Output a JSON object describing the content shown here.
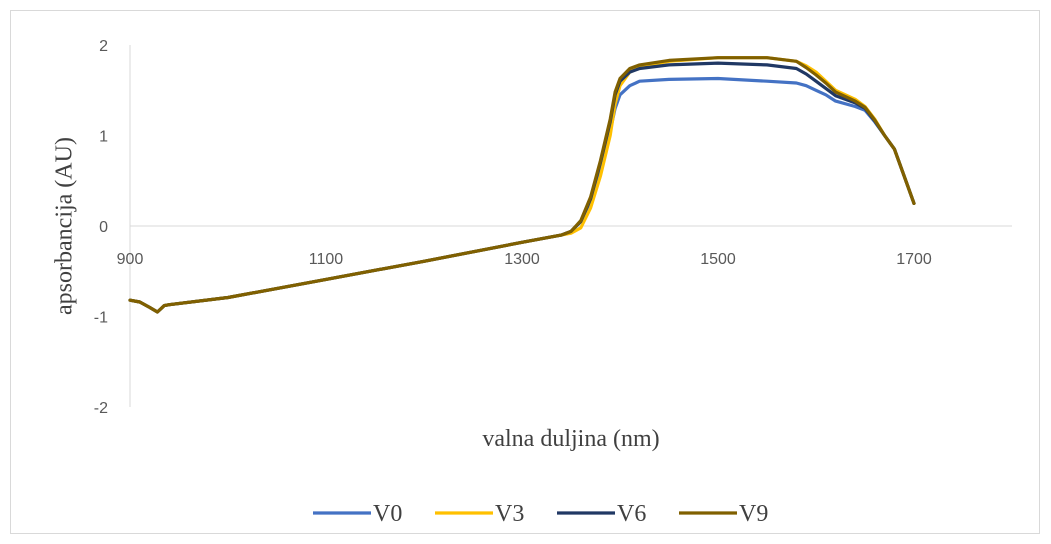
{
  "chart_data": {
    "type": "line",
    "xlabel": "valna duljina (nm)",
    "ylabel": "apsorbancija (AU)",
    "xlim": [
      900,
      1800
    ],
    "ylim": [
      -2,
      2
    ],
    "x_ticks": [
      900,
      1100,
      1300,
      1500,
      1700
    ],
    "y_ticks": [
      -2,
      -1,
      0,
      1,
      2
    ],
    "x_tick_labels": [
      "900",
      "1100",
      "1300",
      "1500",
      "1700"
    ],
    "y_tick_labels": [
      "-2",
      "-1",
      "0",
      "1",
      "2"
    ],
    "grid": false,
    "legend_position": "bottom",
    "colors": {
      "V0": "#4472c4",
      "V3": "#ffc000",
      "V6": "#203864",
      "V9": "#806000"
    },
    "series": [
      {
        "name": "V0",
        "x": [
          900,
          910,
          920,
          928,
          935,
          940,
          1000,
          1100,
          1200,
          1300,
          1340,
          1350,
          1360,
          1370,
          1380,
          1390,
          1395,
          1400,
          1410,
          1420,
          1450,
          1500,
          1550,
          1580,
          1590,
          1600,
          1610,
          1620,
          1640,
          1650,
          1660,
          1670,
          1680,
          1690,
          1700
        ],
        "y": [
          -0.82,
          -0.84,
          -0.9,
          -0.95,
          -0.88,
          -0.87,
          -0.79,
          -0.59,
          -0.39,
          -0.18,
          -0.1,
          -0.06,
          0.05,
          0.28,
          0.65,
          1.05,
          1.3,
          1.45,
          1.55,
          1.6,
          1.62,
          1.63,
          1.6,
          1.58,
          1.55,
          1.5,
          1.45,
          1.38,
          1.32,
          1.28,
          1.15,
          1.0,
          0.85,
          0.55,
          0.25
        ]
      },
      {
        "name": "V3",
        "x": [
          900,
          910,
          920,
          928,
          935,
          940,
          1000,
          1100,
          1200,
          1300,
          1340,
          1350,
          1360,
          1370,
          1380,
          1390,
          1395,
          1400,
          1410,
          1420,
          1450,
          1500,
          1550,
          1580,
          1590,
          1600,
          1610,
          1620,
          1640,
          1650,
          1660,
          1670,
          1680,
          1690,
          1700
        ],
        "y": [
          -0.82,
          -0.84,
          -0.9,
          -0.95,
          -0.88,
          -0.87,
          -0.79,
          -0.59,
          -0.39,
          -0.18,
          -0.1,
          -0.08,
          -0.02,
          0.2,
          0.55,
          1.0,
          1.35,
          1.55,
          1.7,
          1.76,
          1.82,
          1.86,
          1.86,
          1.82,
          1.77,
          1.7,
          1.6,
          1.5,
          1.4,
          1.32,
          1.18,
          1.0,
          0.85,
          0.55,
          0.25
        ]
      },
      {
        "name": "V6",
        "x": [
          900,
          910,
          920,
          928,
          935,
          940,
          1000,
          1100,
          1200,
          1300,
          1340,
          1350,
          1360,
          1370,
          1380,
          1390,
          1395,
          1400,
          1410,
          1420,
          1450,
          1500,
          1550,
          1580,
          1590,
          1600,
          1610,
          1620,
          1640,
          1650,
          1660,
          1670,
          1680,
          1690,
          1700
        ],
        "y": [
          -0.82,
          -0.84,
          -0.9,
          -0.95,
          -0.88,
          -0.87,
          -0.79,
          -0.59,
          -0.39,
          -0.18,
          -0.1,
          -0.06,
          0.05,
          0.3,
          0.7,
          1.15,
          1.45,
          1.6,
          1.7,
          1.74,
          1.78,
          1.8,
          1.78,
          1.74,
          1.68,
          1.6,
          1.52,
          1.44,
          1.36,
          1.3,
          1.16,
          1.0,
          0.85,
          0.55,
          0.25
        ]
      },
      {
        "name": "V9",
        "x": [
          900,
          910,
          920,
          928,
          935,
          940,
          1000,
          1100,
          1200,
          1300,
          1340,
          1350,
          1360,
          1370,
          1380,
          1390,
          1395,
          1400,
          1410,
          1420,
          1450,
          1500,
          1550,
          1580,
          1590,
          1600,
          1610,
          1620,
          1640,
          1650,
          1660,
          1670,
          1680,
          1690,
          1700
        ],
        "y": [
          -0.82,
          -0.84,
          -0.9,
          -0.95,
          -0.88,
          -0.87,
          -0.79,
          -0.59,
          -0.39,
          -0.18,
          -0.1,
          -0.06,
          0.06,
          0.32,
          0.72,
          1.18,
          1.48,
          1.63,
          1.74,
          1.78,
          1.83,
          1.86,
          1.86,
          1.82,
          1.75,
          1.67,
          1.58,
          1.48,
          1.38,
          1.31,
          1.17,
          1.0,
          0.85,
          0.55,
          0.25
        ]
      }
    ]
  }
}
